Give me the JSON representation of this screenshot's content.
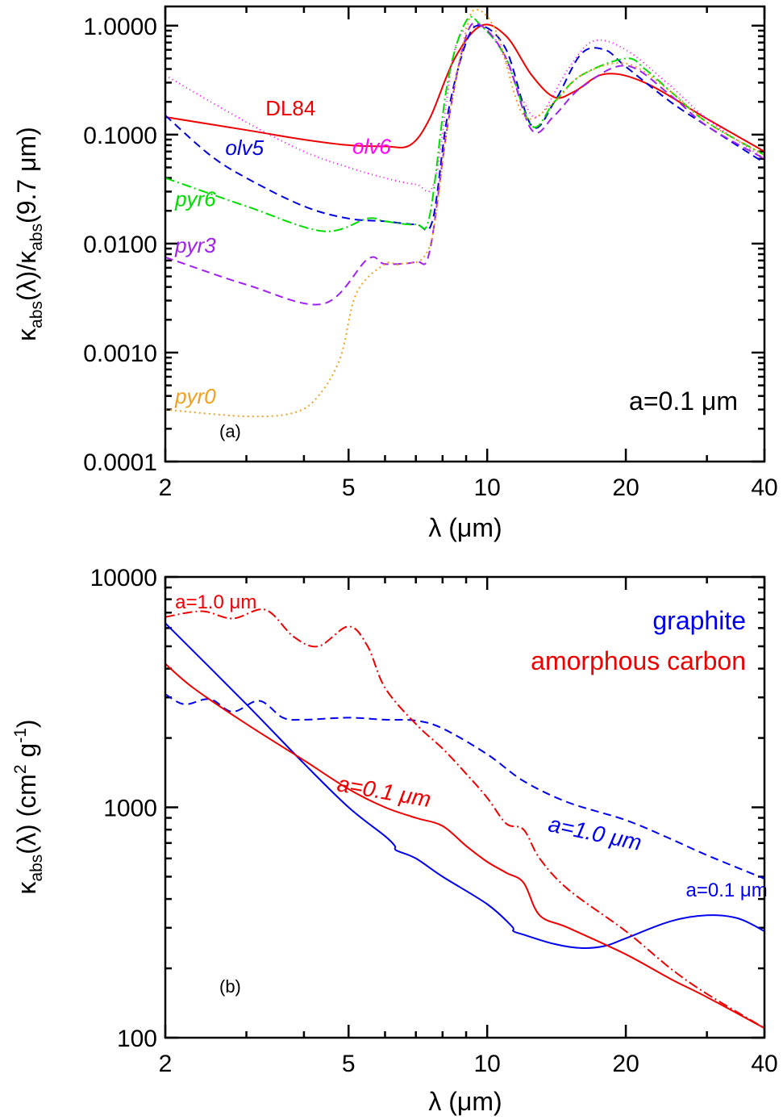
{
  "chart_data": [
    {
      "type": "line",
      "panel_label": "(a)",
      "annotation": "a=0.1 μm",
      "xlabel": "λ (μm)",
      "ylabel": "κabs(λ)/κabs(9.7 μm)",
      "ylabel_parts": {
        "kappa": "κ",
        "sub1": "abs",
        "mid": "(λ)/κ",
        "sub2": "abs",
        "end": "(9.7 μm)"
      },
      "x_scale": "log",
      "y_scale": "log",
      "xlim": [
        2,
        40
      ],
      "ylim": [
        0.0001,
        1.5
      ],
      "x_ticks": [
        2,
        5,
        10,
        20,
        40
      ],
      "x_tick_labels": [
        "2",
        "5",
        "10",
        "20",
        "40"
      ],
      "y_ticks": [
        0.0001,
        0.001,
        0.01,
        0.1,
        1
      ],
      "y_tick_labels": [
        "0.0001",
        "0.0010",
        "0.0100",
        "0.1000",
        "1.0000"
      ],
      "series": [
        {
          "name": "DL84",
          "color": "#ee0000",
          "dash": "solid",
          "x": [
            2,
            3,
            4,
            5,
            6,
            6.8,
            7.5,
            8.5,
            9.7,
            11,
            12.5,
            14,
            15.5,
            18,
            22,
            30,
            40
          ],
          "y": [
            0.145,
            0.11,
            0.09,
            0.08,
            0.078,
            0.08,
            0.14,
            0.5,
            1.0,
            0.8,
            0.35,
            0.22,
            0.25,
            0.36,
            0.3,
            0.14,
            0.07
          ],
          "label_pos": [
            3.3,
            0.15
          ]
        },
        {
          "name": "olv6",
          "color": "#ff00ff",
          "dash": "1,4",
          "x": [
            2,
            3,
            4,
            5,
            6,
            7,
            7.7,
            8.5,
            9.5,
            10.5,
            12,
            13,
            15,
            17,
            20,
            25,
            30,
            40
          ],
          "y": [
            0.35,
            0.13,
            0.07,
            0.05,
            0.04,
            0.035,
            0.038,
            0.6,
            1.0,
            0.7,
            0.2,
            0.15,
            0.4,
            0.72,
            0.6,
            0.28,
            0.14,
            0.06
          ],
          "label_pos": [
            5.1,
            0.067
          ]
        },
        {
          "name": "olv5",
          "color": "#0000dd",
          "dash": "10,6",
          "x": [
            2,
            2.5,
            3,
            4,
            5,
            6,
            7,
            7.6,
            8.2,
            9,
            9.7,
            11,
            12.5,
            14,
            16,
            18,
            20,
            25,
            30,
            40
          ],
          "y": [
            0.15,
            0.065,
            0.04,
            0.022,
            0.017,
            0.016,
            0.015,
            0.016,
            0.15,
            0.7,
            1.0,
            0.6,
            0.12,
            0.2,
            0.55,
            0.6,
            0.42,
            0.2,
            0.12,
            0.055
          ],
          "label_pos": [
            2.7,
            0.065
          ]
        },
        {
          "name": "pyr6",
          "color": "#00dd00",
          "dash": "12,4,2,4",
          "x": [
            2,
            3,
            4.4,
            5.5,
            6,
            7,
            7.5,
            8.2,
            9,
            9.7,
            11,
            12.5,
            14,
            16,
            20,
            22,
            25,
            30,
            40
          ],
          "y": [
            0.04,
            0.022,
            0.013,
            0.017,
            0.016,
            0.015,
            0.018,
            0.3,
            1.1,
            1.0,
            0.5,
            0.12,
            0.2,
            0.35,
            0.5,
            0.4,
            0.25,
            0.13,
            0.065
          ],
          "label_pos": [
            2.1,
            0.022
          ]
        },
        {
          "name": "pyr3",
          "color": "#a020f0",
          "dash": "10,6",
          "x": [
            2,
            3,
            4.4,
            5.5,
            6,
            7,
            7.5,
            8.2,
            9,
            9.7,
            11,
            12.5,
            14,
            16,
            20,
            25,
            30,
            40
          ],
          "y": [
            0.0075,
            0.0042,
            0.0028,
            0.0072,
            0.0065,
            0.0068,
            0.0085,
            0.12,
            0.8,
            1.0,
            0.5,
            0.11,
            0.15,
            0.27,
            0.43,
            0.23,
            0.12,
            0.06
          ],
          "label_pos": [
            2.1,
            0.0083
          ]
        },
        {
          "name": "pyr0",
          "color": "#f0a020",
          "dash": "2,4",
          "x": [
            2,
            3,
            3.8,
            4.3,
            4.8,
            5.2,
            6,
            6.5,
            7.5,
            8.2,
            9,
            9.5,
            10.5,
            12,
            14,
            16,
            20,
            25,
            30,
            40
          ],
          "y": [
            0.0003,
            0.00026,
            0.00028,
            0.0004,
            0.0009,
            0.0035,
            0.0065,
            0.0065,
            0.0095,
            0.12,
            0.9,
            1.4,
            0.85,
            0.15,
            0.2,
            0.35,
            0.45,
            0.25,
            0.13,
            0.065
          ],
          "label_pos": [
            2.1,
            0.00034
          ]
        }
      ]
    },
    {
      "type": "line",
      "panel_label": "(b)",
      "xlabel": "λ (μm)",
      "ylabel": "κabs(λ) (cm2 g-1)",
      "ylabel_parts": {
        "kappa": "κ",
        "sub1": "abs",
        "mid": "(λ) (cm",
        "sup1": "2",
        "mid2": " g",
        "sup2": "-1",
        "end": ")"
      },
      "x_scale": "log",
      "y_scale": "log",
      "xlim": [
        2,
        40
      ],
      "ylim": [
        100,
        10000
      ],
      "x_ticks": [
        2,
        5,
        10,
        20,
        40
      ],
      "x_tick_labels": [
        "2",
        "5",
        "10",
        "20",
        "40"
      ],
      "y_ticks": [
        100,
        1000,
        10000
      ],
      "y_tick_labels": [
        "100",
        "1000",
        "10000"
      ],
      "legend": [
        {
          "label": "graphite",
          "color": "#0000ee"
        },
        {
          "label": "amorphous carbon",
          "color": "#ee0000"
        }
      ],
      "series": [
        {
          "name": "graphite a=0.1 μm",
          "label": "a=0.1 μm",
          "color": "#0000ee",
          "dash": "solid",
          "x": [
            2,
            3,
            4,
            5,
            6,
            6.3,
            6.35,
            7,
            8,
            10,
            11.3,
            11.4,
            12,
            14,
            16,
            18,
            20,
            25,
            30,
            35,
            40
          ],
          "y": [
            6300,
            2800,
            1550,
            1000,
            750,
            680,
            650,
            600,
            500,
            380,
            305,
            290,
            280,
            255,
            245,
            250,
            270,
            320,
            340,
            330,
            290
          ],
          "label_pos": [
            27,
            410
          ]
        },
        {
          "name": "graphite a=1.0 μm",
          "label": "a=1.0 μm",
          "color": "#0000ee",
          "dash": "10,6",
          "x": [
            2,
            2.2,
            2.5,
            2.8,
            3.2,
            3.6,
            4,
            5,
            6,
            7,
            8,
            10,
            12,
            15,
            20,
            25,
            30,
            40
          ],
          "y": [
            3100,
            2800,
            2950,
            2600,
            2900,
            2450,
            2400,
            2450,
            2400,
            2380,
            2200,
            1700,
            1300,
            1050,
            880,
            730,
            620,
            490
          ],
          "label_pos": [
            13.5,
            790
          ]
        },
        {
          "name": "amorphous carbon a=0.1 μm",
          "label": "a=0.1 μm",
          "color": "#ee0000",
          "dash": "solid",
          "x": [
            2,
            2.3,
            3,
            4,
            5,
            6,
            7,
            8,
            9,
            10,
            11,
            12,
            13,
            15,
            20,
            25,
            30,
            40
          ],
          "y": [
            4200,
            3300,
            2300,
            1600,
            1200,
            1000,
            900,
            830,
            680,
            580,
            520,
            470,
            340,
            300,
            230,
            180,
            150,
            110
          ],
          "label_pos": [
            4.7,
            1180
          ]
        },
        {
          "name": "amorphous carbon a=1.0 μm",
          "label": "a=1.0 μm",
          "color": "#ee0000",
          "dash": "12,4,2,4",
          "x": [
            2,
            2.4,
            2.8,
            3.3,
            3.8,
            4.3,
            5,
            5.5,
            6,
            7,
            8,
            9,
            10,
            11,
            12,
            13,
            15,
            20,
            25,
            30,
            40
          ],
          "y": [
            6700,
            7100,
            6600,
            7200,
            5500,
            5000,
            6100,
            5000,
            3300,
            2300,
            1800,
            1400,
            1100,
            850,
            800,
            600,
            440,
            290,
            200,
            155,
            110
          ],
          "label_pos": [
            2.1,
            7300
          ]
        }
      ]
    }
  ]
}
